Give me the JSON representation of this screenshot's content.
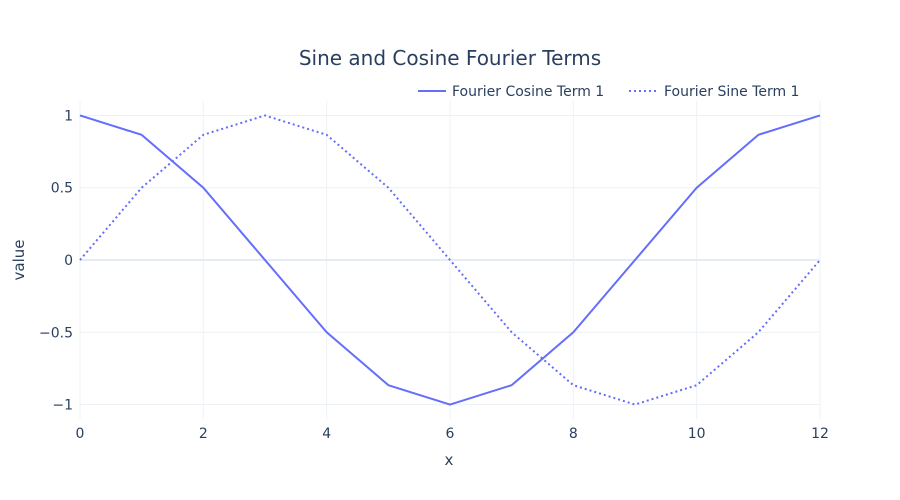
{
  "chart_data": {
    "type": "line",
    "title": "Sine and Cosine Fourier Terms",
    "xlabel": "x",
    "ylabel": "value",
    "xlim": [
      0,
      12
    ],
    "ylim": [
      -1.1,
      1.1
    ],
    "x_ticks": [
      0,
      2,
      4,
      6,
      8,
      10,
      12
    ],
    "x_tick_labels": [
      "0",
      "2",
      "4",
      "6",
      "8",
      "10",
      "12"
    ],
    "y_ticks": [
      1,
      0.5,
      0,
      -0.5,
      -1
    ],
    "y_tick_labels": [
      "1",
      "0.5",
      "0",
      "−0.5",
      "−1"
    ],
    "grid": true,
    "legend_position": "top-right",
    "x": [
      0,
      1,
      2,
      3,
      4,
      5,
      6,
      7,
      8,
      9,
      10,
      11,
      12
    ],
    "series": [
      {
        "name": "Fourier Cosine Term 1",
        "values": [
          1,
          0.866,
          0.5,
          0,
          -0.5,
          -0.866,
          -1,
          -0.866,
          -0.5,
          0,
          0.5,
          0.866,
          1
        ],
        "color": "#636efa",
        "dash": "solid"
      },
      {
        "name": "Fourier Sine Term 1",
        "values": [
          0,
          0.5,
          0.866,
          1,
          0.866,
          0.5,
          0,
          -0.5,
          -0.866,
          -1,
          -0.866,
          -0.5,
          0
        ],
        "color": "#636efa",
        "dash": "dot"
      }
    ]
  }
}
